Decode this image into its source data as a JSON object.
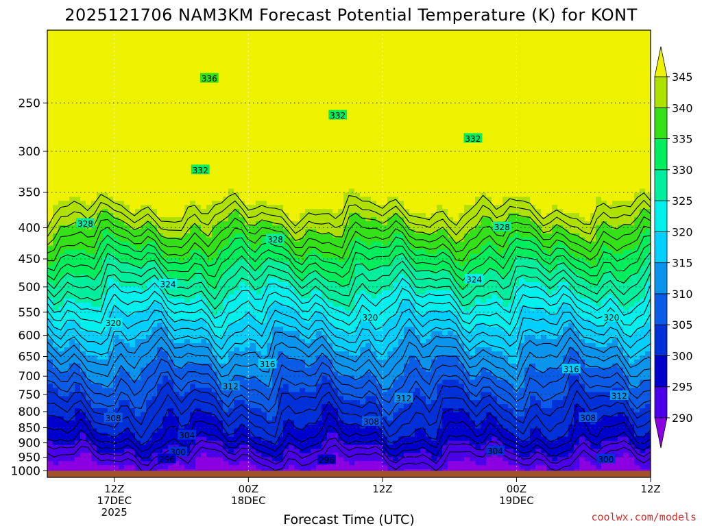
{
  "chart_data": {
    "type": "heatmap",
    "title": "2025121706 NAM3KM Forecast Potential Temperature (K) for KONT",
    "xlabel": "Forecast Time (UTC)",
    "ylabel": "",
    "credit": "coolwx.com/models",
    "credit_color": "#d03030",
    "x_hours": [
      6,
      60
    ],
    "x_ticks": [
      {
        "hour": 12,
        "lines": [
          "12Z",
          "17DEC",
          "2025"
        ]
      },
      {
        "hour": 24,
        "lines": [
          "00Z",
          "18DEC"
        ]
      },
      {
        "hour": 36,
        "lines": [
          "12Z"
        ]
      },
      {
        "hour": 48,
        "lines": [
          "00Z",
          "19DEC"
        ]
      },
      {
        "hour": 60,
        "lines": [
          "12Z"
        ]
      }
    ],
    "y_range_hpa": [
      1025,
      190
    ],
    "y_ticks": [
      "250",
      "300",
      "350",
      "400",
      "450",
      "500",
      "550",
      "600",
      "650",
      "700",
      "750",
      "800",
      "850",
      "900",
      "950",
      "1000"
    ],
    "surface_pressure_hpa": 1000,
    "colorbar": {
      "levels": [
        "290",
        "295",
        "300",
        "305",
        "310",
        "315",
        "320",
        "325",
        "330",
        "335",
        "340",
        "345"
      ],
      "colors": [
        "#8a00e0",
        "#4a00e8",
        "#0000cc",
        "#0030d8",
        "#0a5ce6",
        "#0a94ec",
        "#00cfff",
        "#00f0ee",
        "#00ee9e",
        "#00ee5c",
        "#34e018",
        "#aee000",
        "#eef200"
      ],
      "extend": "both"
    },
    "contour_labels": [
      {
        "text": "336",
        "hour": 20.5,
        "hpa": 228
      },
      {
        "text": "332",
        "hour": 32,
        "hpa": 262
      },
      {
        "text": "332",
        "hour": 44.1,
        "hpa": 286
      },
      {
        "text": "332",
        "hour": 19.7,
        "hpa": 322
      },
      {
        "text": "328",
        "hour": 9.4,
        "hpa": 394
      },
      {
        "text": "328",
        "hour": 26.4,
        "hpa": 418
      },
      {
        "text": "328",
        "hour": 46.7,
        "hpa": 399
      },
      {
        "text": "324",
        "hour": 16.8,
        "hpa": 495
      },
      {
        "text": "324",
        "hour": 44.2,
        "hpa": 486
      },
      {
        "text": "320",
        "hour": 11.9,
        "hpa": 573
      },
      {
        "text": "320",
        "hour": 34.9,
        "hpa": 561
      },
      {
        "text": "320",
        "hour": 56.5,
        "hpa": 561
      },
      {
        "text": "316",
        "hour": 25.7,
        "hpa": 669
      },
      {
        "text": "316",
        "hour": 52.9,
        "hpa": 682
      },
      {
        "text": "312",
        "hour": 22.4,
        "hpa": 727
      },
      {
        "text": "312",
        "hour": 37.9,
        "hpa": 761
      },
      {
        "text": "312",
        "hour": 57.2,
        "hpa": 754
      },
      {
        "text": "308",
        "hour": 11.9,
        "hpa": 820
      },
      {
        "text": "308",
        "hour": 35.0,
        "hpa": 831
      },
      {
        "text": "308",
        "hour": 54.4,
        "hpa": 819
      },
      {
        "text": "304",
        "hour": 18.5,
        "hpa": 875
      },
      {
        "text": "304",
        "hour": 46.1,
        "hpa": 928
      },
      {
        "text": "300",
        "hour": 17.7,
        "hpa": 932
      },
      {
        "text": "300",
        "hour": 56.0,
        "hpa": 957
      },
      {
        "text": "296",
        "hour": 16.7,
        "hpa": 957
      },
      {
        "text": "296",
        "hour": 31.0,
        "hpa": 960
      }
    ]
  }
}
